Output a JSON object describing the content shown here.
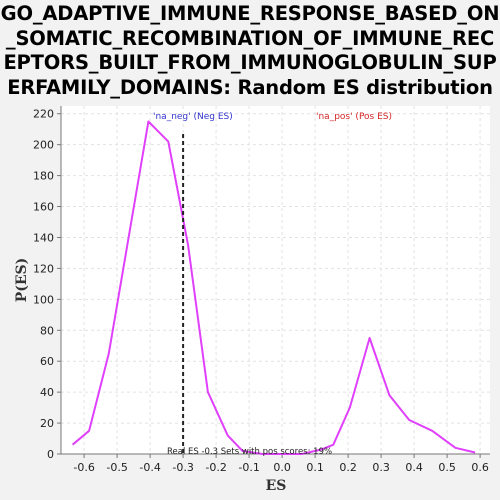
{
  "chart_data": {
    "type": "line",
    "title_lines": [
      "GO_ADAPTIVE_IMMUNE_RESPONSE_BASED_ON",
      "_SOMATIC_RECOMBINATION_OF_IMMUNE_REC",
      "EPTORS_BUILT_FROM_IMMUNOGLOBULIN_SUP",
      "ERFAMILY_DOMAINS: Random ES distribution"
    ],
    "xlabel": "ES",
    "ylabel": "P(ES)",
    "xlim": [
      -0.67,
      0.63
    ],
    "ylim": [
      0,
      225
    ],
    "x_ticks": [
      -0.6,
      -0.5,
      -0.4,
      -0.3,
      -0.2,
      -0.1,
      0.0,
      0.1,
      0.2,
      0.3,
      0.4,
      0.5,
      0.6
    ],
    "x_tick_labels": [
      "-0.6",
      "-0.5",
      "-0.4",
      "-0.3",
      "-0.2",
      "-0.1",
      "0.0",
      "0.1",
      "0.2",
      "0.3",
      "0.4",
      "0.5",
      "0.6"
    ],
    "y_ticks": [
      0,
      20,
      40,
      60,
      80,
      100,
      120,
      140,
      160,
      180,
      200,
      220
    ],
    "y_tick_labels": [
      "0",
      "20",
      "40",
      "60",
      "80",
      "100",
      "120",
      "140",
      "160",
      "180",
      "200",
      "220"
    ],
    "grid": true,
    "series": [
      {
        "color": "#e040fb",
        "x": [
          -0.635,
          -0.585,
          -0.525,
          -0.465,
          -0.405,
          -0.345,
          -0.285,
          -0.225,
          -0.165,
          -0.12,
          -0.06,
          0.0,
          0.06,
          0.12,
          0.155,
          0.205,
          0.265,
          0.325,
          0.385,
          0.455,
          0.525,
          0.585
        ],
        "y": [
          6,
          15,
          65,
          140,
          215,
          202,
          135,
          40,
          12,
          2,
          0,
          0,
          0,
          3,
          6,
          30,
          75,
          38,
          22,
          15,
          4,
          1
        ]
      }
    ],
    "real_es": -0.3,
    "legend": {
      "neg_label": "'na_neg' (Neg ES)",
      "neg_color": "#3333cc",
      "pos_label": "'na_pos' (Pos ES)",
      "pos_color": "#d62728"
    },
    "annotation": "Real ES -0.3 Sets with pos scores: 19%"
  }
}
